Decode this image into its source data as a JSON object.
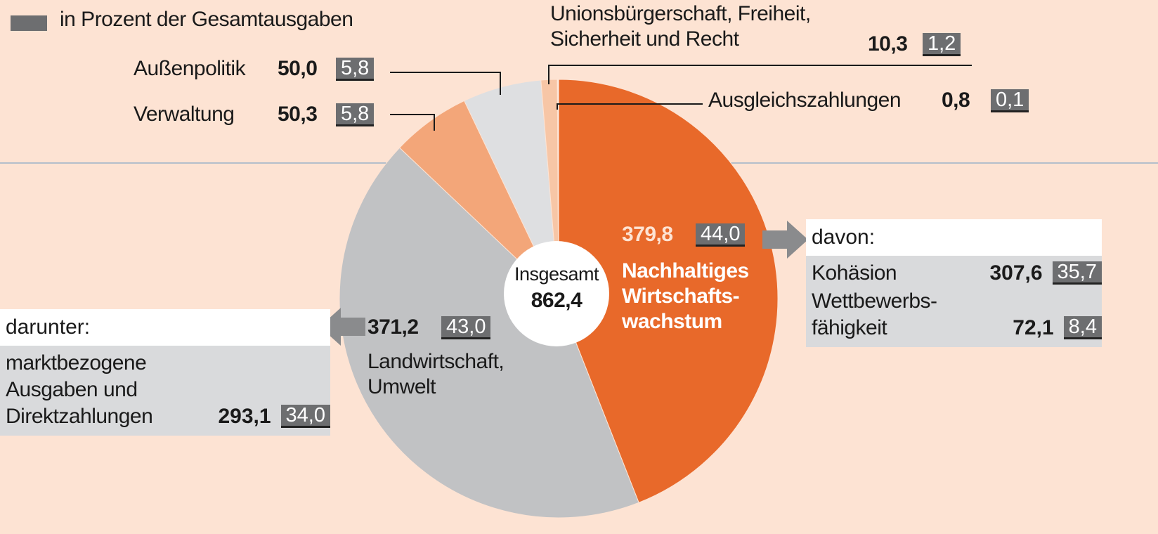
{
  "chart_data": {
    "type": "pie",
    "legend": "in Prozent der Gesamtausgaben",
    "center_label": "Insgesamt",
    "total": 862.4,
    "total_label": "862,4",
    "categories": [
      "Nachhaltiges\nWirtschafts-\nwachstum",
      "Landwirtschaft,\nUmwelt",
      "Verwaltung",
      "Außenpolitik",
      "Unionsbürgerschaft, Freiheit,\nSicherheit und Recht",
      "Ausgleichszahlungen"
    ],
    "values": [
      379.8,
      371.2,
      50.3,
      50.0,
      10.3,
      0.8
    ],
    "value_labels": [
      "379,8",
      "371,2",
      "50,3",
      "50,0",
      "10,3",
      "0,8"
    ],
    "percents": [
      44.0,
      43.0,
      5.8,
      5.8,
      1.2,
      0.1
    ],
    "percent_labels": [
      "44,0",
      "43,0",
      "5,8",
      "5,8",
      "1,2",
      "0,1"
    ],
    "colors": [
      "#e8692a",
      "#c1c2c4",
      "#f3a679",
      "#dedfe1",
      "#f7c6a6",
      "#fdf3ec"
    ],
    "breakdowns": [
      {
        "heading": "davon:",
        "items": [
          {
            "label": "Kohäsion",
            "value": 307.6,
            "value_label": "307,6",
            "percent": 35.7,
            "percent_label": "35,7"
          },
          {
            "label": "Wettbewerbs-\nfähigkeit",
            "value": 72.1,
            "value_label": "72,1",
            "percent": 8.4,
            "percent_label": "8,4"
          }
        ]
      },
      {
        "heading": "darunter:",
        "items": [
          {
            "label": "marktbezogene\nAusgaben und\nDirektzahlungen",
            "value": 293.1,
            "value_label": "293,1",
            "percent": 34.0,
            "percent_label": "34,0"
          }
        ]
      }
    ]
  }
}
